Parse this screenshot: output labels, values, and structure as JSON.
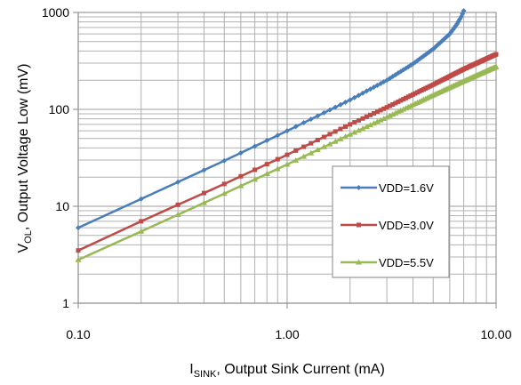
{
  "chart_data": {
    "type": "line",
    "xscale": "log",
    "yscale": "log",
    "xlim": [
      0.1,
      10
    ],
    "ylim": [
      1,
      1000
    ],
    "x_ticks": [
      "0.10",
      "1.00",
      "10.00"
    ],
    "y_ticks": [
      "1",
      "10",
      "100",
      "1000"
    ],
    "xlabel": {
      "main": "I",
      "sub": "SINK",
      "rest": ", Output Sink Current (mA)"
    },
    "ylabel": {
      "main": "V",
      "sub": "OL",
      "rest": ", Output Voltage Low (mV)"
    },
    "grid": true,
    "legend_position": "right",
    "series": [
      {
        "name": "VDD=1.6V",
        "color": "#4a7ebb",
        "marker": "diamond",
        "points": [
          [
            0.1,
            6
          ],
          [
            0.2,
            11.9
          ],
          [
            0.5,
            29.5
          ],
          [
            1,
            60
          ],
          [
            2,
            125
          ],
          [
            3,
            200
          ],
          [
            4,
            295
          ],
          [
            5,
            420
          ],
          [
            6,
            600
          ],
          [
            6.5,
            760
          ],
          [
            6.8,
            900
          ],
          [
            7,
            1040
          ]
        ]
      },
      {
        "name": "VDD=3.0V",
        "color": "#be4b48",
        "marker": "square",
        "points": [
          [
            0.1,
            3.5
          ],
          [
            0.2,
            7
          ],
          [
            0.5,
            17
          ],
          [
            1,
            34
          ],
          [
            2,
            70
          ],
          [
            3,
            105
          ],
          [
            5,
            180
          ],
          [
            7,
            260
          ],
          [
            10,
            370
          ]
        ]
      },
      {
        "name": "VDD=5.5V",
        "color": "#98b954",
        "marker": "triangle",
        "points": [
          [
            0.1,
            2.8
          ],
          [
            0.2,
            5.5
          ],
          [
            0.5,
            13.5
          ],
          [
            1,
            27
          ],
          [
            2,
            55
          ],
          [
            3,
            83
          ],
          [
            5,
            140
          ],
          [
            7,
            195
          ],
          [
            10,
            275
          ]
        ]
      }
    ]
  }
}
